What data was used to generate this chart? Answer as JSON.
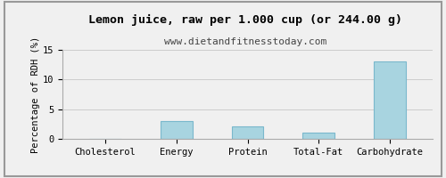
{
  "title": "Lemon juice, raw per 1.000 cup (or 244.00 g)",
  "subtitle": "www.dietandfitnesstoday.com",
  "categories": [
    "Cholesterol",
    "Energy",
    "Protein",
    "Total-Fat",
    "Carbohydrate"
  ],
  "values": [
    0,
    3.0,
    2.1,
    1.0,
    13.0
  ],
  "bar_color": "#a8d4e0",
  "bar_edge_color": "#7ab8cc",
  "ylabel": "Percentage of RDH (%)",
  "ylim": [
    0,
    15
  ],
  "yticks": [
    0,
    5,
    10,
    15
  ],
  "background_color": "#f0f0f0",
  "plot_bg_color": "#f0f0f0",
  "grid_color": "#cccccc",
  "title_fontsize": 9.5,
  "subtitle_fontsize": 8,
  "ylabel_fontsize": 7.5,
  "tick_fontsize": 7.5,
  "border_color": "#999999"
}
